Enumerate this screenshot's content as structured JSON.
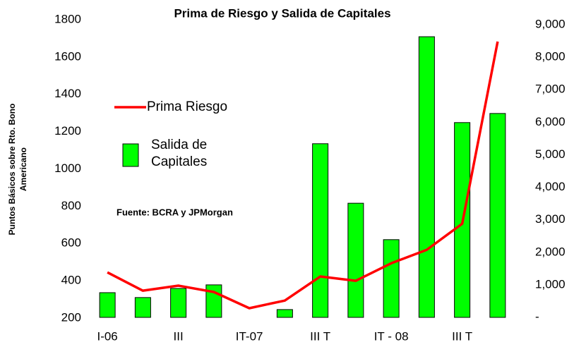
{
  "chart_data": {
    "type": "bar_line",
    "title": "Prima de Riesgo y Salida de Capitales",
    "ylabel": [
      "Puntos Básicos sobre Rto. Bono",
      "Americano"
    ],
    "annotation": "Fuente: BCRA y JPMorgan",
    "categories": [
      "I-06",
      null,
      "III",
      null,
      "IT-07",
      null,
      "III T",
      null,
      "IT - 08",
      null,
      "III T",
      null
    ],
    "series": [
      {
        "name": "Prima Riesgo",
        "type": "line",
        "color": "#ff0000",
        "axis": "y",
        "values": [
          445,
          347,
          374,
          340,
          253,
          294,
          423,
          400,
          494,
          566,
          706,
          1683
        ]
      },
      {
        "name": "Salida de Capitales",
        "type": "bar",
        "color": "#00ff00",
        "axis": "y2",
        "values": [
          760,
          610,
          890,
          1000,
          null,
          240,
          5340,
          3510,
          2390,
          8630,
          5990,
          6270
        ]
      }
    ],
    "ylim": [
      200,
      1800
    ],
    "yticks": [
      200,
      400,
      600,
      800,
      1000,
      1200,
      1400,
      1600,
      1800
    ],
    "y2lim": [
      0,
      9000
    ],
    "y2ticks": [
      {
        "value": 0,
        "label": "-"
      },
      {
        "value": 1000,
        "label": "1,000"
      },
      {
        "value": 2000,
        "label": "2,000"
      },
      {
        "value": 3000,
        "label": "3,000"
      },
      {
        "value": 4000,
        "label": "4,000"
      },
      {
        "value": 5000,
        "label": "5,000"
      },
      {
        "value": 6000,
        "label": "6,000"
      },
      {
        "value": 7000,
        "label": "7,000"
      },
      {
        "value": 8000,
        "label": "8,000"
      },
      {
        "value": 9000,
        "label": "9,000"
      }
    ],
    "grid": false
  }
}
